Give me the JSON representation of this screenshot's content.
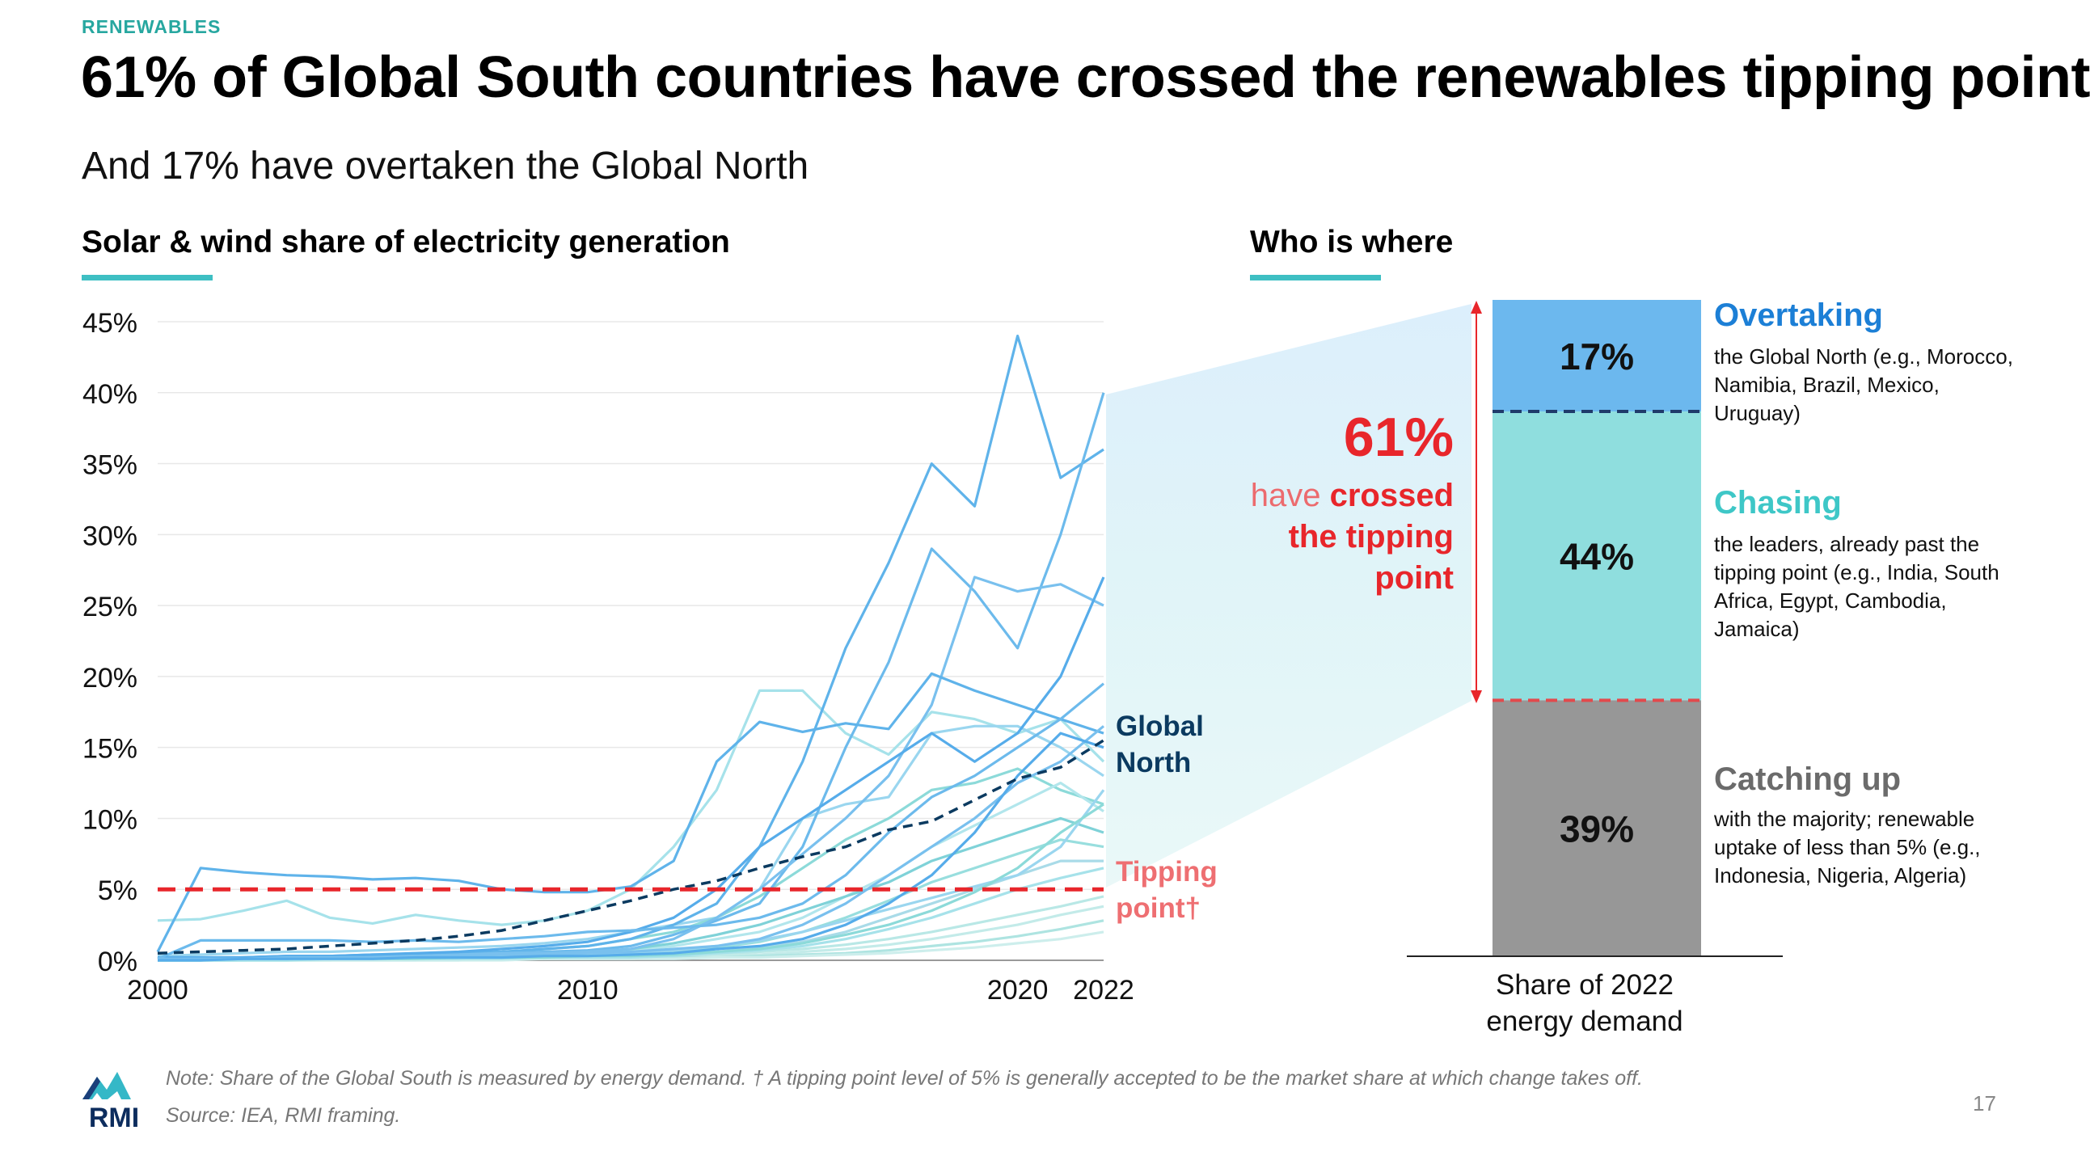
{
  "kicker": "RENEWABLES",
  "headline": "61% of Global South countries have crossed the renewables tipping point",
  "subtitle": "And 17% have overtaken the Global North",
  "line_chart_title": "Solar & wind share of electricity generation",
  "bar_chart_title": "Who is where",
  "crossed": {
    "pct": "61%",
    "text_normal": "have ",
    "text_bold_1": "crossed",
    "text_bold_2": "the tipping",
    "text_bold_3": "point"
  },
  "groups": [
    {
      "title": "Overtaking",
      "desc": "the Global North (e.g., Morocco, Namibia, Brazil, Mexico, Uruguay)"
    },
    {
      "title": "Chasing",
      "desc": "the leaders, already past the tipping point (e.g., India, South Africa, Egypt, Cambodia, Jamaica)"
    },
    {
      "title": "Catching up",
      "desc": "with the majority; renewable uptake of less than 5% (e.g., Indonesia, Nigeria, Algeria)"
    }
  ],
  "bar_axis_label_1": "Share of 2022",
  "bar_axis_label_2": "energy demand",
  "note": "Note: Share of the Global South is measured by energy demand. † A tipping point level of 5% is generally accepted to be the market share at which change takes off.",
  "source": "Source: IEA, RMI framing.",
  "page_number": "17",
  "logo_text": "RMI",
  "colors": {
    "accent_teal": "#3ebfc3",
    "overtaking": "#6cb8ee",
    "chasing": "#8fdede",
    "catching_up": "#979797",
    "tipping_red": "#e8262b",
    "global_north": "#0b3a60"
  },
  "chart_data": [
    {
      "type": "line",
      "title": "Solar & wind share of electricity generation",
      "x_ticks": [
        2000,
        2010,
        2020,
        2022
      ],
      "y_ticks": [
        "0%",
        "5%",
        "10%",
        "15%",
        "20%",
        "25%",
        "30%",
        "35%",
        "40%",
        "45%"
      ],
      "ylim": [
        0,
        45
      ],
      "xlim": [
        2000,
        2022
      ],
      "x": [
        2000,
        2001,
        2002,
        2003,
        2004,
        2005,
        2006,
        2007,
        2008,
        2009,
        2010,
        2011,
        2012,
        2013,
        2014,
        2015,
        2016,
        2017,
        2018,
        2019,
        2020,
        2021,
        2022
      ],
      "global_north": {
        "name": "Global North",
        "values": [
          0.5,
          0.6,
          0.7,
          0.8,
          1.0,
          1.2,
          1.4,
          1.7,
          2.1,
          2.8,
          3.5,
          4.2,
          5.0,
          5.6,
          6.5,
          7.3,
          8.0,
          9.2,
          9.8,
          11.3,
          12.8,
          13.6,
          15.5
        ]
      },
      "tipping_point": {
        "name": "Tipping point†",
        "value": 5
      },
      "countries": [
        {
          "group": "overtaking",
          "values": [
            0.2,
            0.2,
            0.2,
            0.3,
            0.3,
            0.4,
            0.4,
            0.5,
            0.6,
            0.8,
            1.0,
            1.5,
            2.5,
            4.0,
            8.0,
            14.0,
            22.0,
            28.0,
            35.0,
            32.0,
            44.0,
            34.0,
            36.0
          ]
        },
        {
          "group": "overtaking",
          "values": [
            0.1,
            0.1,
            0.1,
            0.1,
            0.2,
            0.2,
            0.3,
            0.4,
            0.5,
            0.6,
            0.7,
            1.0,
            1.8,
            2.8,
            4.0,
            8.0,
            15.0,
            21.0,
            29.0,
            26.0,
            22.0,
            30.0,
            40.0
          ]
        },
        {
          "group": "overtaking",
          "values": [
            0.1,
            0.1,
            0.2,
            0.2,
            0.2,
            0.3,
            0.3,
            0.4,
            0.5,
            0.5,
            0.6,
            0.8,
            1.5,
            3.0,
            5.0,
            7.5,
            10.0,
            13.0,
            18.0,
            27.0,
            26.0,
            26.5,
            25.0
          ]
        },
        {
          "group": "overtaking",
          "values": [
            0.2,
            0.2,
            0.2,
            0.3,
            0.3,
            0.4,
            0.5,
            0.6,
            0.8,
            1.0,
            1.3,
            2.0,
            3.0,
            5.0,
            8.0,
            10.0,
            12.0,
            14.0,
            16.0,
            14.0,
            16.0,
            20.0,
            27.0
          ]
        },
        {
          "group": "overtaking",
          "values": [
            0.6,
            6.5,
            6.2,
            6.0,
            5.9,
            5.7,
            5.8,
            5.6,
            5.0,
            4.8,
            4.8,
            5.2,
            7.0,
            14.0,
            16.8,
            16.1,
            16.7,
            16.3,
            20.2,
            19.0,
            18.0,
            17.0,
            16.0
          ]
        },
        {
          "group": "overtaking",
          "values": [
            0.1,
            1.4,
            1.4,
            1.4,
            1.4,
            1.3,
            1.4,
            1.3,
            1.5,
            1.7,
            2.0,
            2.1,
            2.3,
            2.5,
            3.0,
            4.0,
            6.0,
            9.0,
            11.5,
            13.0,
            15.0,
            17.0,
            19.5
          ]
        },
        {
          "group": "overtaking",
          "values": [
            0.1,
            0.1,
            0.1,
            0.2,
            0.2,
            0.2,
            0.3,
            0.3,
            0.4,
            0.4,
            0.5,
            0.6,
            0.8,
            1.0,
            1.5,
            2.5,
            4.0,
            6.0,
            8.0,
            10.0,
            12.5,
            14.0,
            16.5
          ]
        },
        {
          "group": "overtaking",
          "values": [
            0.0,
            0.0,
            0.1,
            0.1,
            0.1,
            0.1,
            0.2,
            0.2,
            0.2,
            0.3,
            0.3,
            0.4,
            0.5,
            0.8,
            1.0,
            1.5,
            2.5,
            4.0,
            6.0,
            9.0,
            13.0,
            16.0,
            15.0
          ]
        },
        {
          "group": "chasing",
          "values": [
            2.8,
            2.9,
            3.5,
            4.2,
            3.0,
            2.6,
            3.2,
            2.8,
            2.5,
            2.8,
            3.5,
            5.0,
            8.0,
            12.0,
            19.0,
            19.0,
            16.0,
            14.5,
            17.5,
            17.0,
            16.0,
            17.0,
            14.0
          ]
        },
        {
          "group": "chasing",
          "values": [
            0.3,
            0.4,
            0.5,
            0.6,
            0.6,
            0.7,
            0.8,
            0.9,
            1.0,
            1.2,
            1.5,
            2.0,
            2.5,
            3.0,
            5.0,
            10.0,
            11.0,
            11.5,
            16.0,
            16.5,
            16.5,
            15.0,
            13.0
          ]
        },
        {
          "group": "chasing",
          "values": [
            0.1,
            0.1,
            0.2,
            0.2,
            0.3,
            0.3,
            0.4,
            0.5,
            0.6,
            0.8,
            1.0,
            1.5,
            2.0,
            3.0,
            4.5,
            6.5,
            8.5,
            10.0,
            12.0,
            12.5,
            13.5,
            12.0,
            11.0
          ]
        },
        {
          "group": "chasing",
          "values": [
            0.0,
            0.1,
            0.1,
            0.1,
            0.1,
            0.2,
            0.2,
            0.3,
            0.3,
            0.4,
            0.5,
            0.7,
            1.0,
            1.5,
            2.0,
            3.0,
            4.5,
            6.0,
            8.0,
            9.5,
            11.0,
            12.5,
            10.5
          ]
        },
        {
          "group": "chasing",
          "values": [
            0.1,
            0.1,
            0.1,
            0.2,
            0.2,
            0.2,
            0.3,
            0.3,
            0.4,
            0.5,
            0.6,
            0.8,
            1.2,
            1.8,
            2.5,
            3.5,
            4.5,
            5.5,
            7.0,
            8.0,
            9.0,
            10.0,
            9.0
          ]
        },
        {
          "group": "chasing",
          "values": [
            0.0,
            0.0,
            0.1,
            0.1,
            0.1,
            0.1,
            0.1,
            0.2,
            0.2,
            0.2,
            0.3,
            0.4,
            0.6,
            0.9,
            1.3,
            2.0,
            3.0,
            4.2,
            5.5,
            6.5,
            7.5,
            8.5,
            8.0
          ]
        },
        {
          "group": "chasing",
          "values": [
            0.0,
            0.0,
            0.0,
            0.1,
            0.1,
            0.1,
            0.1,
            0.1,
            0.2,
            0.2,
            0.2,
            0.3,
            0.4,
            0.6,
            0.9,
            1.3,
            2.0,
            3.0,
            4.0,
            5.0,
            6.0,
            7.0,
            7.0
          ]
        },
        {
          "group": "chasing",
          "values": [
            0.0,
            0.0,
            0.0,
            0.0,
            0.1,
            0.1,
            0.1,
            0.1,
            0.1,
            0.2,
            0.2,
            0.2,
            0.3,
            0.5,
            0.7,
            1.0,
            1.5,
            2.2,
            3.0,
            4.0,
            5.0,
            5.8,
            6.5
          ]
        },
        {
          "group": "chasing",
          "values": [
            0.1,
            0.1,
            0.1,
            0.1,
            0.1,
            0.2,
            0.2,
            0.2,
            0.3,
            0.3,
            0.4,
            0.5,
            0.7,
            1.0,
            1.4,
            2.0,
            2.8,
            3.6,
            4.4,
            5.2,
            6.0,
            8.0,
            12.0
          ]
        },
        {
          "group": "chasing",
          "values": [
            0.0,
            0.0,
            0.1,
            0.1,
            0.1,
            0.1,
            0.1,
            0.2,
            0.2,
            0.2,
            0.3,
            0.3,
            0.4,
            0.6,
            0.8,
            1.2,
            1.8,
            2.5,
            3.5,
            4.8,
            6.5,
            9.0,
            11.0
          ]
        },
        {
          "group": "catching_up",
          "values": [
            0.0,
            0.0,
            0.0,
            0.0,
            0.0,
            0.1,
            0.1,
            0.1,
            0.1,
            0.1,
            0.2,
            0.2,
            0.3,
            0.4,
            0.6,
            0.8,
            1.1,
            1.5,
            2.0,
            2.6,
            3.2,
            3.8,
            4.5
          ]
        },
        {
          "group": "catching_up",
          "values": [
            0.0,
            0.0,
            0.0,
            0.0,
            0.0,
            0.0,
            0.0,
            0.1,
            0.1,
            0.1,
            0.1,
            0.2,
            0.2,
            0.3,
            0.4,
            0.6,
            0.8,
            1.1,
            1.5,
            2.0,
            2.5,
            3.2,
            3.8
          ]
        },
        {
          "group": "catching_up",
          "values": [
            0.0,
            0.0,
            0.0,
            0.0,
            0.0,
            0.0,
            0.0,
            0.0,
            0.1,
            0.1,
            0.1,
            0.1,
            0.2,
            0.2,
            0.3,
            0.4,
            0.5,
            0.7,
            1.0,
            1.3,
            1.7,
            2.2,
            2.8
          ]
        },
        {
          "group": "catching_up",
          "values": [
            0.0,
            0.0,
            0.0,
            0.0,
            0.0,
            0.0,
            0.0,
            0.0,
            0.0,
            0.1,
            0.1,
            0.1,
            0.1,
            0.2,
            0.2,
            0.3,
            0.4,
            0.5,
            0.7,
            0.9,
            1.2,
            1.5,
            2.0
          ]
        }
      ]
    },
    {
      "type": "bar",
      "title": "Who is where",
      "xlabel": "Share of 2022 energy demand",
      "stacked": true,
      "series": [
        {
          "name": "Overtaking",
          "value": 17
        },
        {
          "name": "Chasing",
          "value": 44
        },
        {
          "name": "Catching up",
          "value": 39
        }
      ]
    }
  ]
}
